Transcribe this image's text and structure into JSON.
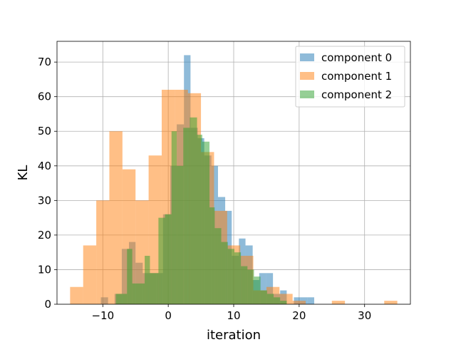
{
  "chart_data": {
    "type": "histogram",
    "xlabel": "iteration",
    "ylabel": "KL",
    "xlim": [
      -17,
      37
    ],
    "ylim": [
      0,
      76
    ],
    "xticks": [
      -10,
      0,
      10,
      20,
      30
    ],
    "yticks": [
      0,
      10,
      20,
      30,
      40,
      50,
      60,
      70
    ],
    "xtick_labels": [
      "−10",
      "0",
      "10",
      "20",
      "30"
    ],
    "ytick_labels": [
      "0",
      "10",
      "20",
      "30",
      "40",
      "50",
      "60",
      "70"
    ],
    "grid": true,
    "legend_position": "top-right",
    "series": [
      {
        "name": "component 0",
        "color": "#1f77b4",
        "bins": [
          [
            -10.3,
            -9.2,
            2
          ],
          [
            -8.2,
            -7.1,
            3
          ],
          [
            -7.1,
            -6.0,
            16
          ],
          [
            -6.0,
            -5.0,
            18
          ],
          [
            -5.0,
            -3.9,
            12
          ],
          [
            -3.9,
            -2.9,
            9
          ],
          [
            -2.9,
            -1.8,
            9
          ],
          [
            -1.8,
            -0.8,
            9
          ],
          [
            -0.8,
            0.3,
            26
          ],
          [
            0.3,
            1.3,
            40
          ],
          [
            1.3,
            2.4,
            52
          ],
          [
            2.4,
            3.4,
            72
          ],
          [
            3.4,
            4.5,
            51
          ],
          [
            4.5,
            5.5,
            48
          ],
          [
            5.5,
            6.6,
            43
          ],
          [
            6.6,
            7.6,
            40
          ],
          [
            7.6,
            8.7,
            31
          ],
          [
            8.7,
            9.7,
            27
          ],
          [
            9.7,
            10.8,
            14
          ],
          [
            10.8,
            11.8,
            19
          ],
          [
            11.8,
            12.9,
            17
          ],
          [
            12.9,
            13.9,
            7
          ],
          [
            13.9,
            15.0,
            9
          ],
          [
            15.0,
            16.0,
            9
          ],
          [
            16.0,
            17.1,
            3
          ],
          [
            17.1,
            18.1,
            4
          ],
          [
            19.2,
            20.2,
            2
          ],
          [
            20.2,
            21.3,
            2
          ],
          [
            21.3,
            22.3,
            2
          ]
        ]
      },
      {
        "name": "component 1",
        "color": "#ff7f0e",
        "bins": [
          [
            -15.0,
            -13.0,
            5
          ],
          [
            -13.0,
            -11.0,
            17
          ],
          [
            -11.0,
            -9.0,
            30
          ],
          [
            -9.0,
            -7.0,
            50
          ],
          [
            -7.0,
            -5.0,
            39
          ],
          [
            -5.0,
            -3.0,
            30
          ],
          [
            -3.0,
            -1.0,
            43
          ],
          [
            -1.0,
            1.0,
            62
          ],
          [
            1.0,
            3.0,
            62
          ],
          [
            3.0,
            5.0,
            61
          ],
          [
            5.0,
            7.0,
            44
          ],
          [
            7.0,
            9.0,
            27
          ],
          [
            9.0,
            11.0,
            17
          ],
          [
            11.0,
            13.0,
            14
          ],
          [
            13.0,
            15.0,
            4
          ],
          [
            15.0,
            17.0,
            5
          ],
          [
            17.0,
            19.0,
            3
          ],
          [
            19.0,
            21.0,
            1
          ],
          [
            21.0,
            23.0,
            0
          ],
          [
            23.0,
            25.0,
            0
          ],
          [
            25.0,
            27.0,
            1
          ],
          [
            27.0,
            29.0,
            0
          ],
          [
            29.0,
            31.0,
            0
          ],
          [
            31.0,
            33.0,
            0
          ],
          [
            33.0,
            35.0,
            1
          ]
        ]
      },
      {
        "name": "component 2",
        "color": "#2ca02c",
        "bins": [
          [
            -8.0,
            -6.3,
            3
          ],
          [
            -6.3,
            -5.5,
            16
          ],
          [
            -5.5,
            -3.6,
            6
          ],
          [
            -3.6,
            -2.8,
            14
          ],
          [
            -2.8,
            -1.5,
            9
          ],
          [
            -1.5,
            -0.5,
            25
          ],
          [
            -0.5,
            0.5,
            26
          ],
          [
            0.5,
            1.3,
            50
          ],
          [
            1.3,
            2.3,
            40
          ],
          [
            2.3,
            3.3,
            51
          ],
          [
            3.3,
            4.4,
            54
          ],
          [
            4.4,
            5.2,
            49
          ],
          [
            5.2,
            6.3,
            47
          ],
          [
            6.3,
            7.1,
            28
          ],
          [
            7.1,
            8.1,
            22
          ],
          [
            8.1,
            9.1,
            18
          ],
          [
            9.1,
            10.1,
            16
          ],
          [
            10.1,
            11.1,
            15
          ],
          [
            11.1,
            12.1,
            11
          ],
          [
            12.1,
            13.1,
            10
          ],
          [
            13.1,
            14.1,
            8
          ],
          [
            14.1,
            15.1,
            4
          ],
          [
            15.1,
            16.1,
            3
          ],
          [
            16.1,
            17.1,
            2
          ],
          [
            17.1,
            18.1,
            1
          ]
        ]
      }
    ]
  }
}
